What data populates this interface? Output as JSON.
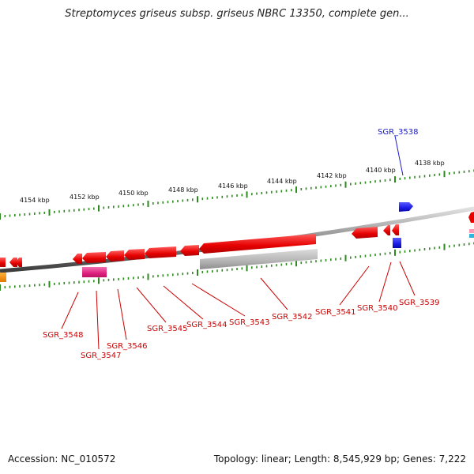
{
  "title": "Streptomyces griseus subsp. griseus NBRC 13350, complete gen...",
  "footer": {
    "accession": "Accession: NC_010572",
    "summary": "Topology: linear; Length: 8,545,929 bp; Genes: 7,222"
  },
  "colors": {
    "forward_gene": "#1b1be6",
    "reverse_gene": "#e60000",
    "rna_gene": "#e6238c",
    "pseudo_gene": "#b4b4b4",
    "tick": "#2d8a1e",
    "forward_label": "#1a1ad0",
    "reverse_label": "#cc0000"
  },
  "scale_labels": [
    "4154 kbp",
    "4152 kbp",
    "4150 kbp",
    "4148 kbp",
    "4146 kbp",
    "4144 kbp",
    "4142 kbp",
    "4140 kbp",
    "4138 kbp"
  ],
  "gene_labels": [
    {
      "id": "SGR_3538",
      "strand": "forward"
    },
    {
      "id": "SGR_3539",
      "strand": "reverse"
    },
    {
      "id": "SGR_3540",
      "strand": "reverse"
    },
    {
      "id": "SGR_3541",
      "strand": "reverse"
    },
    {
      "id": "SGR_3542",
      "strand": "reverse"
    },
    {
      "id": "SGR_3543",
      "strand": "reverse"
    },
    {
      "id": "SGR_3544",
      "strand": "reverse"
    },
    {
      "id": "SGR_3545",
      "strand": "reverse"
    },
    {
      "id": "SGR_3546",
      "strand": "reverse"
    },
    {
      "id": "SGR_3547",
      "strand": "reverse"
    },
    {
      "id": "SGR_3548",
      "strand": "reverse"
    }
  ]
}
